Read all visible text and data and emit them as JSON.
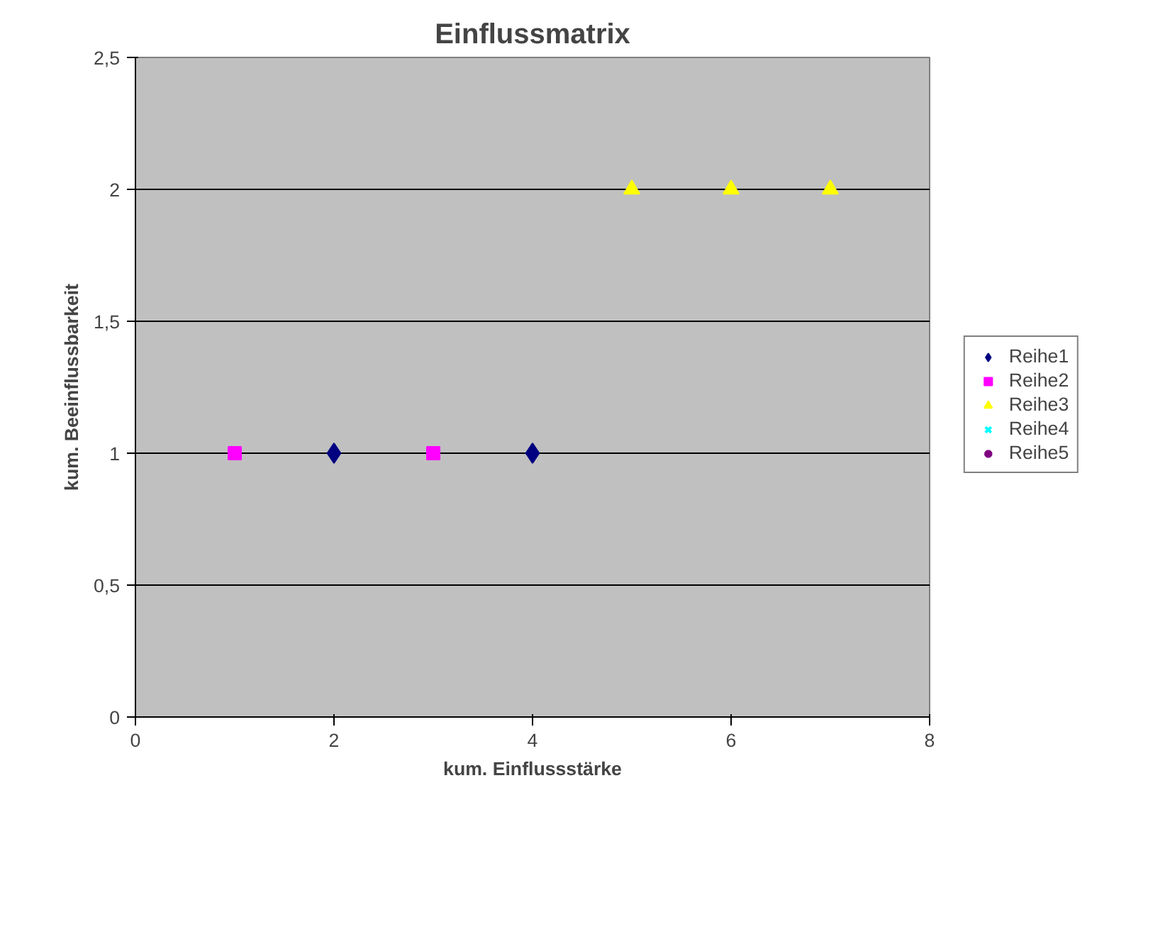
{
  "chart_data": {
    "type": "scatter",
    "title": "Einflussmatrix",
    "xlabel": "kum. Einflussstärke",
    "ylabel": "kum. Beeinflussbarkeit",
    "xlim": [
      0,
      8
    ],
    "xticks": [
      0,
      2,
      4,
      6,
      8
    ],
    "ylim": [
      0,
      2.5
    ],
    "yticks": [
      0,
      {
        "value": 0.5,
        "label": "0,5"
      },
      1,
      {
        "value": 1.5,
        "label": "1,5"
      },
      2,
      {
        "value": 2.5,
        "label": "2,5"
      }
    ],
    "grid": "y",
    "legend": "right",
    "series": [
      {
        "name": "Reihe1",
        "color": "#000080",
        "marker": "diamond",
        "x": [
          2,
          4
        ],
        "values": [
          1,
          1
        ]
      },
      {
        "name": "Reihe2",
        "color": "#ff00ff",
        "marker": "square",
        "x": [
          1,
          3
        ],
        "values": [
          1,
          1
        ]
      },
      {
        "name": "Reihe3",
        "color": "#ffff00",
        "marker": "triangle",
        "x": [
          5,
          6,
          7
        ],
        "values": [
          2,
          2,
          2
        ]
      },
      {
        "name": "Reihe4",
        "color": "#00ffff",
        "marker": "cross"
      },
      {
        "name": "Reihe5",
        "color": "#800080",
        "marker": "star"
      }
    ]
  }
}
